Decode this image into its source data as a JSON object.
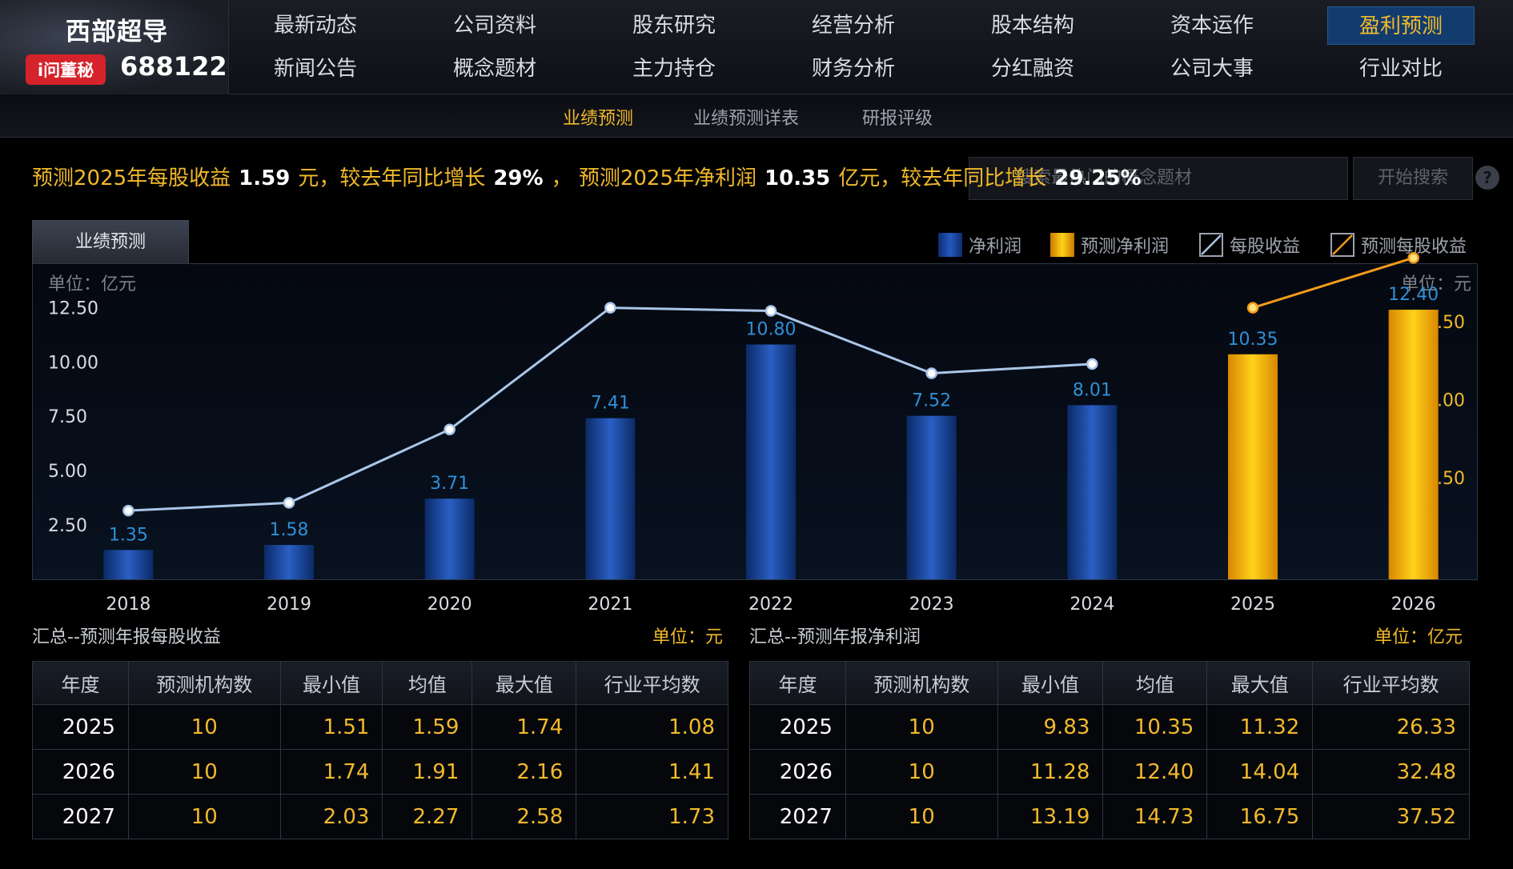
{
  "header": {
    "company_name": "西部超导",
    "badge": "i问董秘",
    "stock_code": "688122",
    "nav_row1": [
      "最新动态",
      "公司资料",
      "股东研究",
      "经营分析",
      "股本结构",
      "资本运作",
      "盈利预测"
    ],
    "nav_row2": [
      "新闻公告",
      "概念题材",
      "主力持仓",
      "财务分析",
      "分红融资",
      "公司大事",
      "行业对比"
    ],
    "active_nav": "盈利预测"
  },
  "subnav": {
    "items": [
      "业绩预测",
      "业绩预测详表",
      "研报评级"
    ],
    "active": "业绩预测"
  },
  "summary": {
    "p1": "预测2025年每股收益",
    "v1": "1.59",
    "p2": "元，较去年同比增长",
    "v2": "29%",
    "p3": "，  预测2025年净利润",
    "v3": "10.35",
    "p4": "亿元，较去年同比增长",
    "v4": "29.25%"
  },
  "search": {
    "placeholder": "搜索最热门的概念题材",
    "button": "开始搜索",
    "help": "?"
  },
  "chart": {
    "tab": "业绩预测",
    "legend": [
      "净利润",
      "预测净利润",
      "每股收益",
      "预测每股收益"
    ],
    "left_unit": "单位：亿元",
    "right_unit": "单位：元",
    "left_ticks": [
      "12.50",
      "10.00",
      "7.50",
      "5.00",
      "2.50"
    ],
    "right_ticks": [
      "1.50",
      "1.00",
      "0.50"
    ]
  },
  "chart_data": {
    "type": "bar",
    "categories": [
      "2018",
      "2019",
      "2020",
      "2021",
      "2022",
      "2023",
      "2024",
      "2025",
      "2026"
    ],
    "series": [
      {
        "name": "净利润",
        "values": [
          1.35,
          1.58,
          3.71,
          7.41,
          10.8,
          7.52,
          8.01,
          null,
          null
        ],
        "color": "#1a4da8"
      },
      {
        "name": "预测净利润",
        "values": [
          null,
          null,
          null,
          null,
          null,
          null,
          null,
          10.35,
          12.4
        ],
        "color": "#f2b300"
      },
      {
        "name": "每股收益",
        "values": [
          0.29,
          0.34,
          0.81,
          1.59,
          1.57,
          1.17,
          1.23,
          null,
          null
        ],
        "color": "#aac6e8"
      },
      {
        "name": "预测每股收益",
        "values": [
          null,
          null,
          null,
          null,
          null,
          null,
          1.23,
          1.59,
          1.91
        ],
        "color": "#f29c1a"
      }
    ],
    "left_axis": {
      "label": "单位：亿元",
      "range": [
        0,
        14.5
      ]
    },
    "right_axis": {
      "label": "单位：元",
      "range": [
        -0.15,
        1.87
      ]
    }
  },
  "eps_table": {
    "title": "汇总--预测年报每股收益",
    "unit": "单位：元",
    "headers": [
      "年度",
      "预测机构数",
      "最小值",
      "均值",
      "最大值",
      "行业平均数"
    ],
    "rows": [
      [
        "2025",
        "10",
        "1.51",
        "1.59",
        "1.74",
        "1.08"
      ],
      [
        "2026",
        "10",
        "1.74",
        "1.91",
        "2.16",
        "1.41"
      ],
      [
        "2027",
        "10",
        "2.03",
        "2.27",
        "2.58",
        "1.73"
      ]
    ]
  },
  "profit_table": {
    "title": "汇总--预测年报净利润",
    "unit": "单位：亿元",
    "headers": [
      "年度",
      "预测机构数",
      "最小值",
      "均值",
      "最大值",
      "行业平均数"
    ],
    "rows": [
      [
        "2025",
        "10",
        "9.83",
        "10.35",
        "11.32",
        "26.33"
      ],
      [
        "2026",
        "10",
        "11.28",
        "12.40",
        "14.04",
        "32.48"
      ],
      [
        "2027",
        "10",
        "13.19",
        "14.73",
        "16.75",
        "37.52"
      ]
    ]
  }
}
